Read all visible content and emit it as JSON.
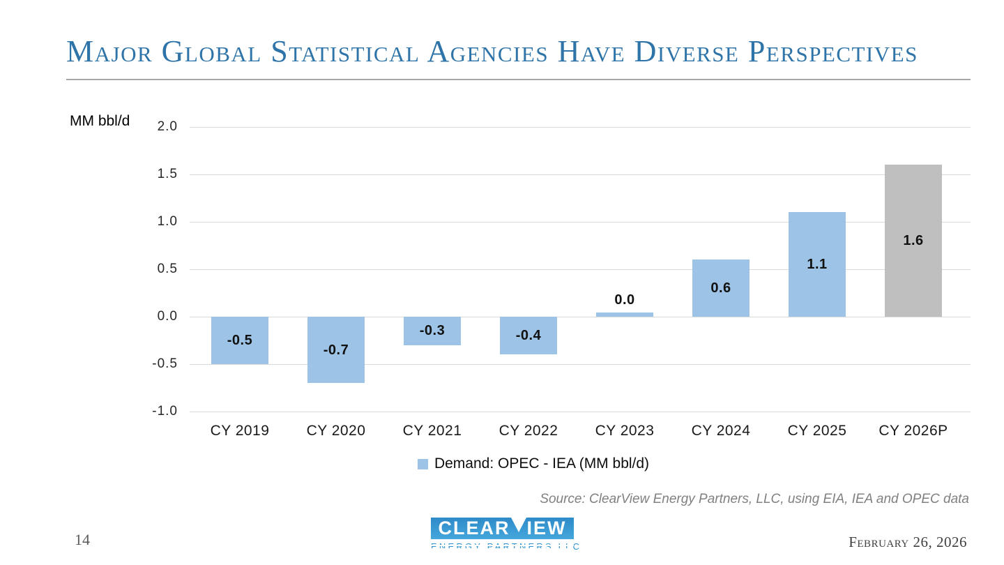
{
  "slide": {
    "title": "Major Global Statistical Agencies Have Diverse Perspectives",
    "page_number": "14",
    "date": "February 26, 2026",
    "source": "Source: ClearView Energy Partners, LLC, using EIA, IEA and OPEC data",
    "logo": {
      "wordmark_left": "CLEAR",
      "wordmark_right": "IEW",
      "subtitle": "ENERGY PARTNERS LLC"
    }
  },
  "chart_data": {
    "type": "bar",
    "title": "",
    "unit_label": "MM bbl/d",
    "categories": [
      "CY 2019",
      "CY 2020",
      "CY 2021",
      "CY 2022",
      "CY 2023",
      "CY 2024",
      "CY 2025",
      "CY 2026P"
    ],
    "series": [
      {
        "name": "Demand: OPEC - IEA (MM bbl/d)",
        "values": [
          -0.5,
          -0.7,
          -0.3,
          -0.4,
          0.0,
          0.6,
          1.1,
          1.6
        ]
      }
    ],
    "value_labels": [
      "-0.5",
      "-0.7",
      "-0.3",
      "-0.4",
      "0.0",
      "0.6",
      "1.1",
      "1.6"
    ],
    "y_ticks": [
      "2.0",
      "1.5",
      "1.0",
      "0.5",
      "0.0",
      "-0.5",
      "-1.0"
    ],
    "ylim": [
      -1.0,
      2.0
    ],
    "grid": true,
    "colors": {
      "bar_default": "#9DC3E6",
      "bar_forecast": "#BFBFBF",
      "gridline": "#D9D9D9"
    },
    "forecast_index": 7,
    "legend": {
      "label": "Demand: OPEC - IEA (MM bbl/d)",
      "position": "bottom",
      "swatch_color": "#9DC3E6"
    }
  }
}
